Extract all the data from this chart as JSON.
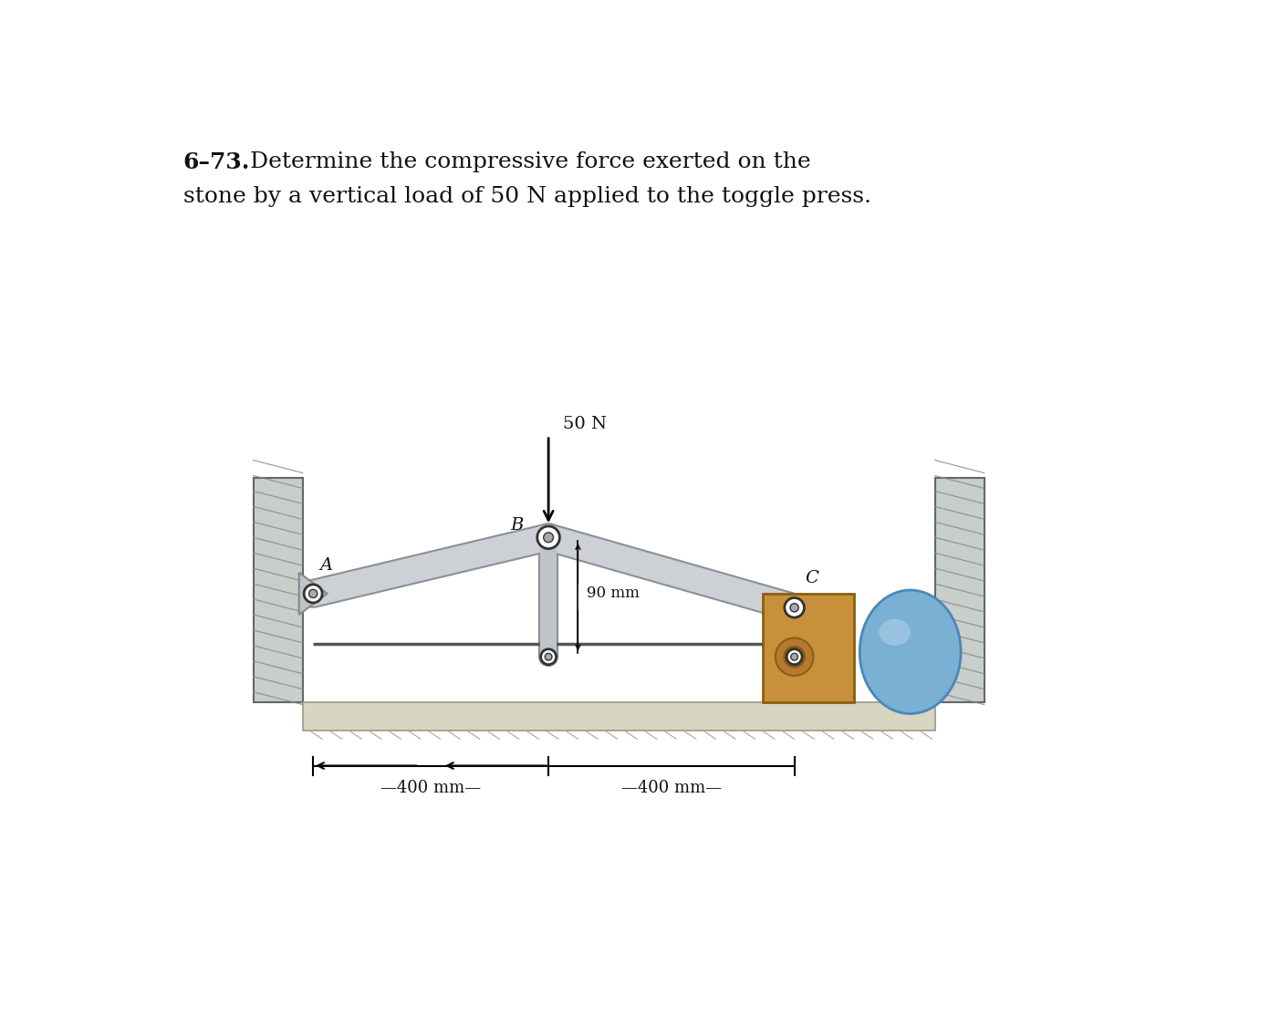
{
  "title_bold": "6–73.",
  "title_rest": "  Determine the compressive force exerted on the",
  "title_line2": "stone by a vertical load of 50 N applied to the toggle press.",
  "title_fontsize": 18,
  "bg_color": "#ffffff",
  "wall_color_light": "#c8ceca",
  "wall_color_dark": "#9aa49a",
  "link_color": "#c2c6ca",
  "link_edge_color": "#8a9098",
  "floor_color": "#d8d5c0",
  "stone_color": "#c8903a",
  "stone_edge": "#8a6010",
  "ball_color_main": "#7ab0d4",
  "ball_color_light": "#aacce8",
  "ball_color_edge": "#4a88b8",
  "pin_color": "#ffffff",
  "pin_edge": "#333333",
  "dim_color": "#111111",
  "label_A": "A",
  "label_B": "B",
  "label_C": "C",
  "label_50N": "50 N",
  "label_90mm": "90 mm",
  "label_400mm_left": "—400 mm—",
  "label_400mm_right": "—400 mm—",
  "figsize": [
    13.93,
    11.25
  ],
  "dpi": 100,
  "xlim": [
    0,
    13.93
  ],
  "ylim": [
    0,
    11.25
  ]
}
